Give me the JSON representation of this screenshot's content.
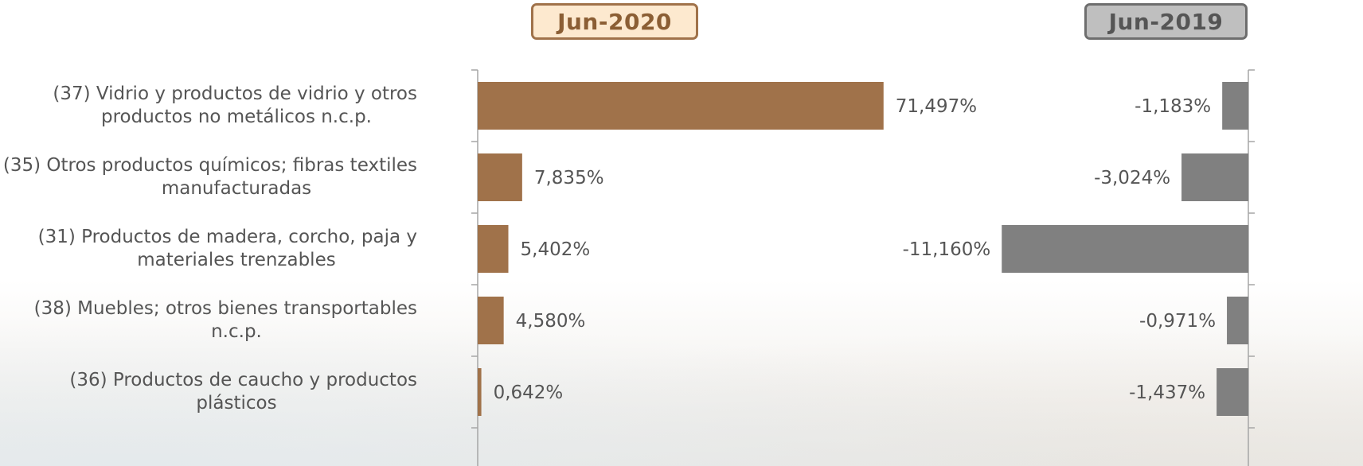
{
  "headers": {
    "left": "Jun-2020",
    "right": "Jun-2019"
  },
  "colors": {
    "jun2020": "#a0724a",
    "jun2019": "#808080",
    "axis": "#a6a6a6"
  },
  "chart_data": [
    {
      "type": "bar",
      "orientation": "horizontal",
      "title": "Jun-2020",
      "categories": [
        "(37) Vidrio y productos de vidrio y otros productos no metálicos n.c.p.",
        "(35) Otros productos químicos; fibras textiles manufacturadas",
        "(31) Productos de madera, corcho, paja y materiales trenzables",
        "(38) Muebles; otros bienes transportables n.c.p.",
        "(36) Productos de caucho y productos plásticos"
      ],
      "category_lines": [
        [
          "(37) Vidrio y productos de vidrio y otros",
          "productos no metálicos n.c.p."
        ],
        [
          "(35) Otros productos químicos; fibras textiles",
          "manufacturadas"
        ],
        [
          "(31) Productos de madera, corcho, paja y",
          "materiales trenzables"
        ],
        [
          "(38) Muebles; otros bienes transportables",
          "n.c.p."
        ],
        [
          "(36) Productos de caucho y productos",
          "plásticos"
        ]
      ],
      "values": [
        71.497,
        7.835,
        5.402,
        4.58,
        0.642
      ],
      "labels": [
        "71,497%",
        "7,835%",
        "5,402%",
        "4,580%",
        "0,642%"
      ],
      "xlim": [
        0,
        100
      ],
      "grid": false
    },
    {
      "type": "bar",
      "orientation": "horizontal",
      "title": "Jun-2019",
      "values": [
        -1.183,
        -3.024,
        -11.16,
        -0.971,
        -1.437
      ],
      "labels": [
        "-1,183%",
        "-3,024%",
        "-11,160%",
        "-0,971%",
        "-1,437%"
      ],
      "xlim": [
        -14.7,
        0
      ],
      "grid": false
    }
  ]
}
